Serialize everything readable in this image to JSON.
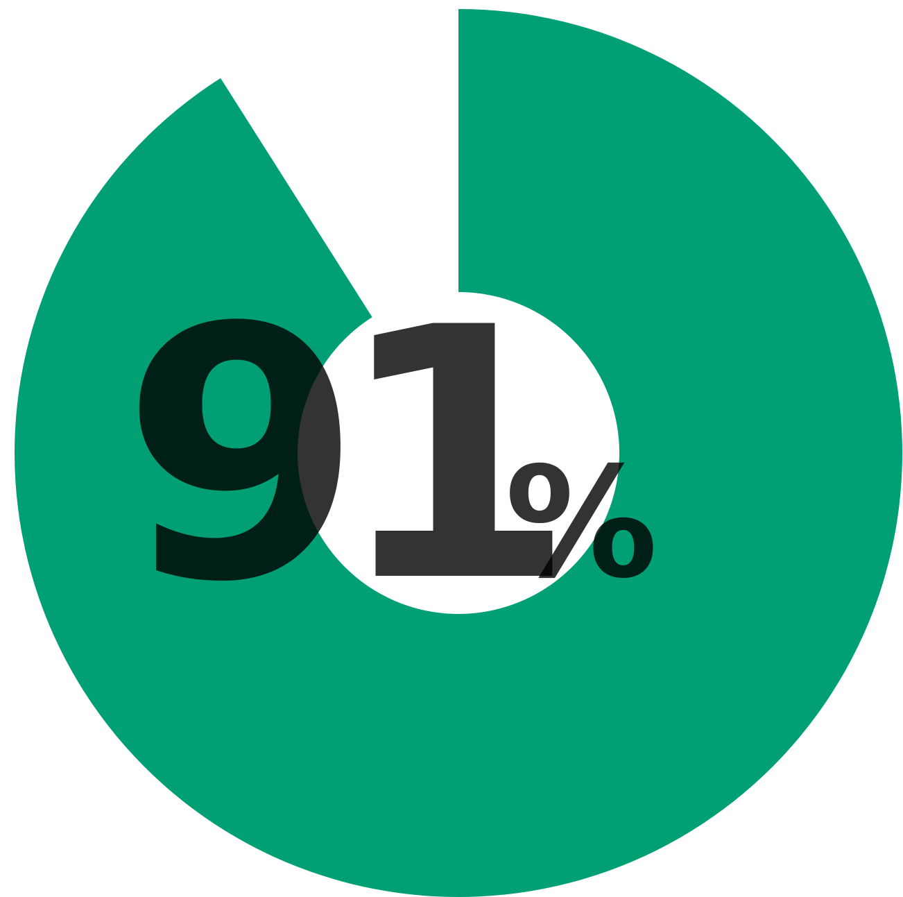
{
  "chart_data": {
    "type": "pie",
    "value": 91,
    "display_value": "91",
    "unit": "%",
    "colors": {
      "filled": "#00A074",
      "remainder": "#FFFFFF",
      "text": "#000000"
    }
  }
}
